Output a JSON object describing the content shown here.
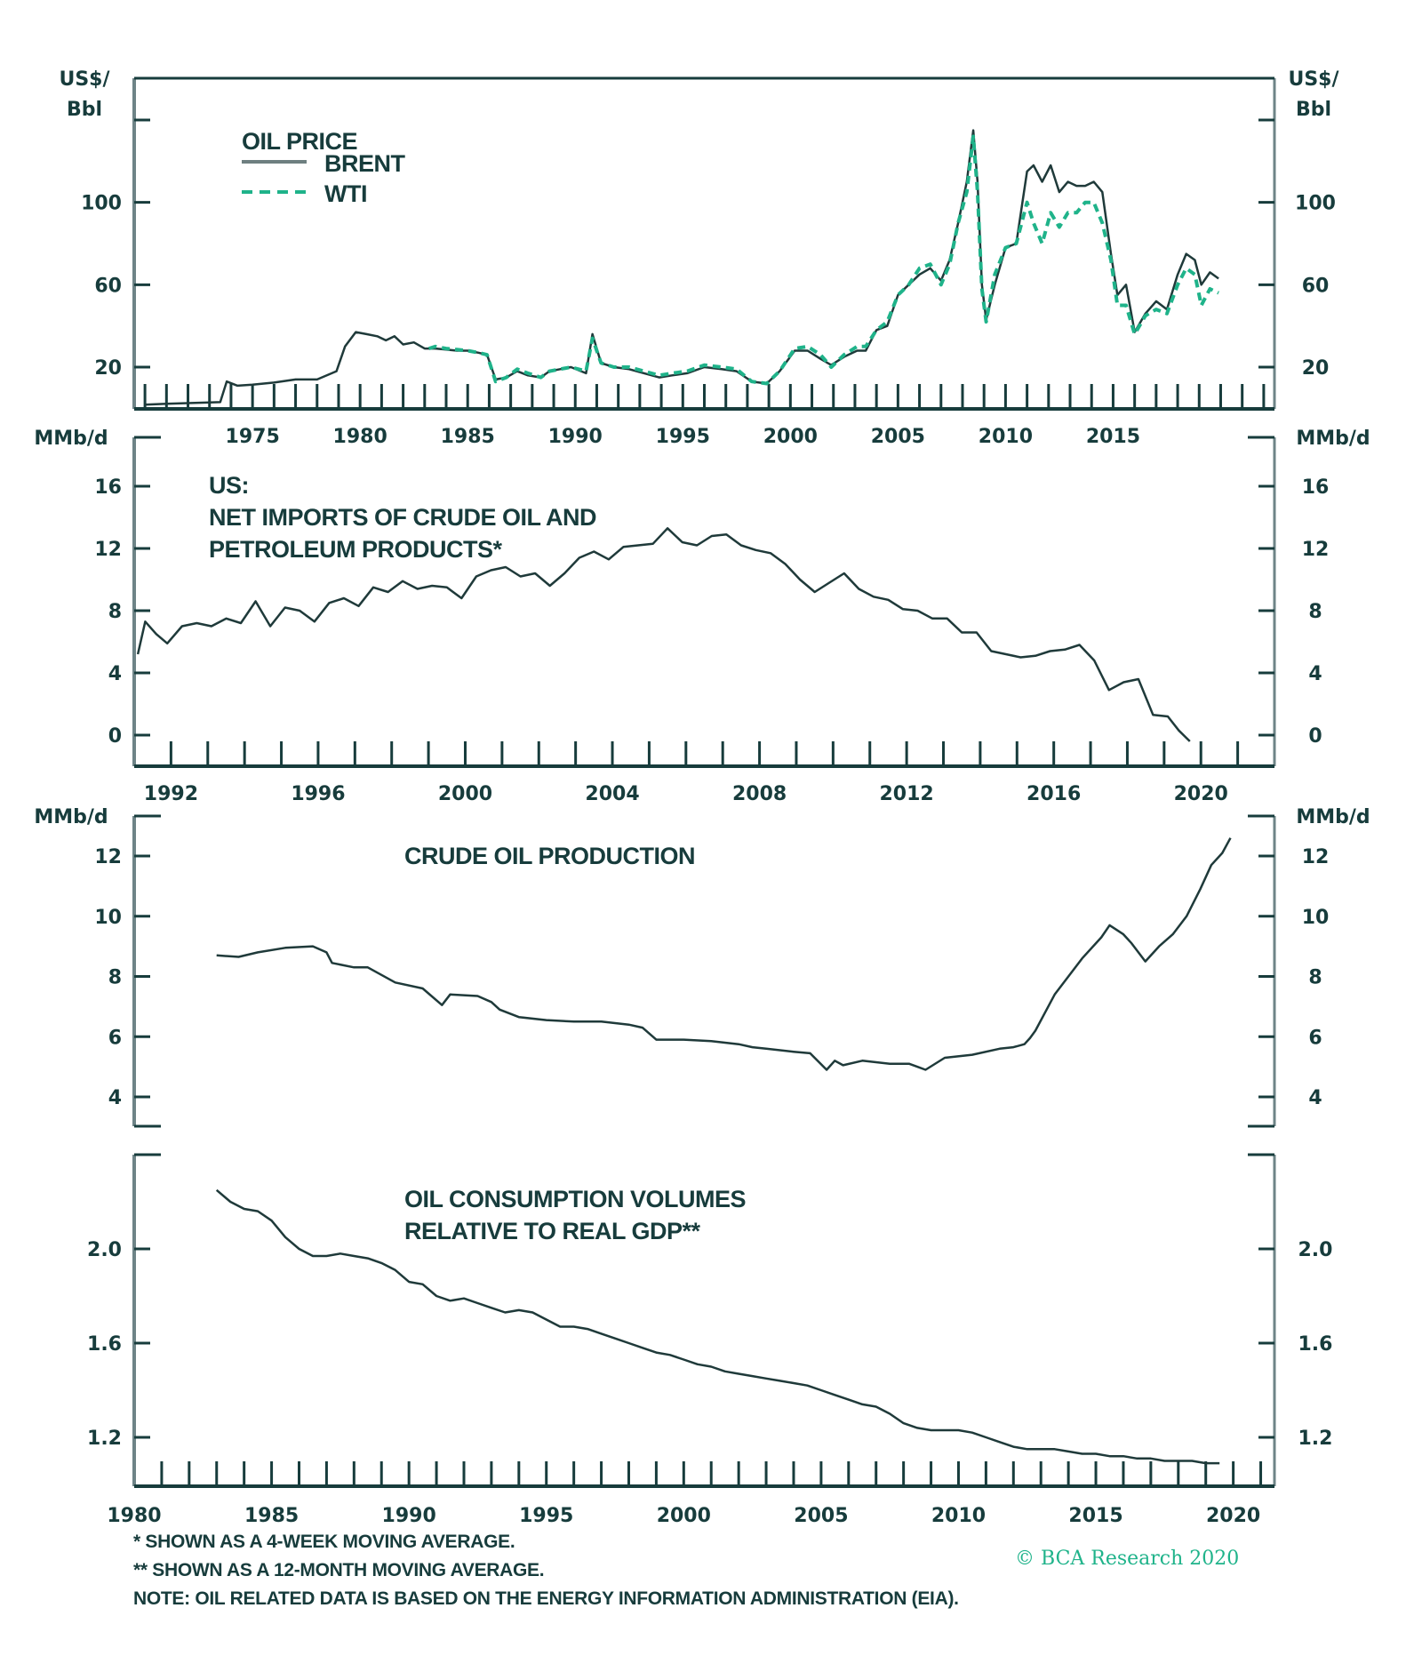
{
  "colors": {
    "ink": "#173c3c",
    "axis": "#6e8487",
    "brent": "#1f3a3a",
    "wti": "#1fb38a",
    "copyright": "#1fb38a"
  },
  "footnotes": [
    "*  SHOWN AS A 4-WEEK MOVING AVERAGE.",
    "** SHOWN AS A 12-MONTH MOVING AVERAGE.",
    "NOTE: OIL RELATED DATA IS BASED ON THE ENERGY INFORMATION ADMINISTRATION (EIA)."
  ],
  "copyright": "© BCA Research 2020",
  "chart_data": [
    {
      "id": "oil-price",
      "type": "line",
      "title": "OIL PRICE",
      "ylabel": "US$/ Bbl",
      "ylabel_lines": [
        "US$/",
        "Bbl"
      ],
      "ylim": [
        0,
        140
      ],
      "yticks": [
        20,
        60,
        100,
        140
      ],
      "ytick_labels": [
        "20",
        "60",
        "100",
        ""
      ],
      "xlim": [
        1969.5,
        2022.5
      ],
      "xticks_minor_every": 1,
      "xtick_labels": [
        "1975",
        "1980",
        "1985",
        "1990",
        "1995",
        "2000",
        "2005",
        "2010",
        "2015"
      ],
      "legend": {
        "placement": "top-left",
        "entries": [
          {
            "name": "BRENT",
            "style": "solid"
          },
          {
            "name": "WTI",
            "style": "dashed"
          }
        ]
      },
      "series": [
        {
          "name": "BRENT",
          "style": "solid",
          "x": [
            1970,
            1971,
            1972,
            1973.5,
            1973.8,
            1974.3,
            1975,
            1976,
            1977,
            1978,
            1978.9,
            1979.3,
            1979.8,
            1980.3,
            1980.8,
            1981.2,
            1981.6,
            1982,
            1982.5,
            1983,
            1983.5,
            1984,
            1984.5,
            1985,
            1985.5,
            1985.9,
            1986.3,
            1986.8,
            1987.3,
            1987.8,
            1988.4,
            1988.8,
            1989.3,
            1989.8,
            1990.5,
            1990.8,
            1991.2,
            1991.8,
            1992.5,
            1993.2,
            1993.9,
            1994.5,
            1995.2,
            1996,
            1996.8,
            1997.5,
            1998.2,
            1998.9,
            1999.5,
            2000.2,
            2000.8,
            2001.4,
            2001.9,
            2002.5,
            2003.1,
            2003.5,
            2004,
            2004.5,
            2005,
            2005.5,
            2006,
            2006.5,
            2007,
            2007.4,
            2007.8,
            2008.2,
            2008.5,
            2008.7,
            2008.9,
            2009.1,
            2009.5,
            2010,
            2010.5,
            2011,
            2011.3,
            2011.7,
            2012.1,
            2012.5,
            2012.9,
            2013.3,
            2013.7,
            2014.1,
            2014.5,
            2014.9,
            2015.2,
            2015.6,
            2016.0,
            2016.5,
            2017,
            2017.5,
            2018,
            2018.4,
            2018.8,
            2019.1,
            2019.5,
            2019.9
          ],
          "y": [
            1.8,
            2.2,
            2.5,
            3,
            13,
            11,
            11.5,
            12.5,
            14,
            14,
            18,
            30,
            37,
            36,
            35,
            33,
            35,
            31,
            32,
            29,
            29,
            28.5,
            28,
            28,
            27,
            26,
            14,
            15,
            18,
            16,
            15,
            18,
            19,
            20,
            17,
            36,
            22,
            20,
            19,
            17,
            15,
            16,
            17,
            20,
            19,
            18,
            13,
            12,
            18,
            28,
            28,
            24,
            21,
            25,
            28,
            28,
            38,
            40,
            55,
            60,
            65,
            68,
            62,
            72,
            90,
            110,
            135,
            110,
            60,
            43,
            60,
            78,
            80,
            115,
            118,
            110,
            118,
            105,
            110,
            108,
            108,
            110,
            105,
            75,
            55,
            60,
            37,
            46,
            52,
            48,
            65,
            75,
            72,
            60,
            66,
            63
          ]
        },
        {
          "name": "WTI",
          "style": "dashed",
          "x": [
            1983.2,
            1983.5,
            1984,
            1984.5,
            1985,
            1985.5,
            1985.9,
            1986.3,
            1986.8,
            1987.3,
            1987.8,
            1988.4,
            1988.8,
            1989.3,
            1989.8,
            1990.5,
            1990.8,
            1991.2,
            1991.8,
            1992.5,
            1993.2,
            1993.9,
            1994.5,
            1995.2,
            1996,
            1996.8,
            1997.5,
            1998.2,
            1998.9,
            1999.5,
            2000.2,
            2000.8,
            2001.4,
            2001.9,
            2002.5,
            2003.1,
            2003.5,
            2004,
            2004.5,
            2005,
            2005.5,
            2006,
            2006.5,
            2007,
            2007.4,
            2007.8,
            2008.2,
            2008.5,
            2008.7,
            2008.9,
            2009.1,
            2009.5,
            2010,
            2010.5,
            2011,
            2011.3,
            2011.7,
            2012.1,
            2012.5,
            2012.9,
            2013.3,
            2013.7,
            2014.1,
            2014.5,
            2014.9,
            2015.2,
            2015.6,
            2016.0,
            2016.5,
            2017,
            2017.5,
            2018,
            2018.4,
            2018.8,
            2019.1,
            2019.5,
            2019.9
          ],
          "y": [
            29,
            30,
            29,
            28.5,
            28,
            27,
            26,
            13,
            15,
            19,
            17,
            15,
            18,
            19,
            20,
            18,
            34,
            22,
            20,
            20,
            18,
            16,
            17,
            18,
            21,
            20,
            19,
            13,
            12,
            18,
            29,
            30,
            26,
            20,
            26,
            30,
            30,
            38,
            42,
            55,
            60,
            68,
            70,
            60,
            70,
            90,
            105,
            132,
            105,
            58,
            42,
            65,
            78,
            80,
            100,
            90,
            80,
            95,
            88,
            95,
            95,
            100,
            100,
            90,
            72,
            50,
            50,
            36,
            45,
            48,
            46,
            60,
            68,
            65,
            50,
            58,
            56
          ]
        }
      ]
    },
    {
      "id": "net-imports",
      "type": "line",
      "title_lines": [
        "US:",
        "NET IMPORTS OF CRUDE OIL AND",
        "PETROLEUM PRODUCTS*"
      ],
      "ylabel": "MMb/d",
      "ylim": [
        -1.8,
        18.5
      ],
      "yticks": [
        0,
        4,
        8,
        12,
        16
      ],
      "ytick_labels": [
        "0",
        "4",
        "8",
        "12",
        "16"
      ],
      "xlim": [
        1991,
        2022
      ],
      "xticks_minor_every": 1,
      "xtick_labels": [
        "1992",
        "1996",
        "2000",
        "2004",
        "2008",
        "2012",
        "2016",
        "2020"
      ],
      "series": [
        {
          "name": "Net imports",
          "x": [
            1991.1,
            1991.3,
            1991.6,
            1991.9,
            1992.3,
            1992.7,
            1993.1,
            1993.5,
            1993.9,
            1994.3,
            1994.7,
            1995.1,
            1995.5,
            1995.9,
            1996.3,
            1996.7,
            1997.1,
            1997.5,
            1997.9,
            1998.3,
            1998.7,
            1999.1,
            1999.5,
            1999.9,
            2000.3,
            2000.7,
            2001.1,
            2001.5,
            2001.9,
            2002.3,
            2002.7,
            2003.1,
            2003.5,
            2003.9,
            2004.3,
            2004.7,
            2005.1,
            2005.5,
            2005.9,
            2006.3,
            2006.7,
            2007.1,
            2007.5,
            2007.9,
            2008.3,
            2008.7,
            2009.1,
            2009.5,
            2009.9,
            2010.3,
            2010.7,
            2011.1,
            2011.5,
            2011.9,
            2012.3,
            2012.7,
            2013.1,
            2013.5,
            2013.9,
            2014.3,
            2014.7,
            2015.1,
            2015.5,
            2015.9,
            2016.3,
            2016.7,
            2017.1,
            2017.5,
            2017.9,
            2018.3,
            2018.7,
            2019.1,
            2019.4,
            2019.7
          ],
          "y": [
            5.2,
            7.3,
            6.5,
            5.9,
            7.0,
            7.2,
            7.0,
            7.5,
            7.2,
            8.6,
            7.0,
            8.2,
            8.0,
            7.3,
            8.5,
            8.8,
            8.3,
            9.5,
            9.2,
            9.9,
            9.4,
            9.6,
            9.5,
            8.8,
            10.2,
            10.6,
            10.8,
            10.2,
            10.4,
            9.6,
            10.4,
            11.4,
            11.8,
            11.3,
            12.1,
            12.2,
            12.3,
            13.3,
            12.4,
            12.2,
            12.8,
            12.9,
            12.2,
            11.9,
            11.7,
            11.0,
            10.0,
            9.2,
            9.8,
            10.4,
            9.4,
            8.9,
            8.7,
            8.1,
            8.0,
            7.5,
            7.5,
            6.6,
            6.6,
            5.4,
            5.2,
            5.0,
            5.1,
            5.4,
            5.5,
            5.8,
            4.8,
            2.9,
            3.4,
            3.6,
            1.3,
            1.2,
            0.3,
            -0.4
          ]
        }
      ]
    },
    {
      "id": "crude-production",
      "type": "line",
      "title": "CRUDE OIL PRODUCTION",
      "ylabel": "MMb/d",
      "ylim": [
        3,
        13.7
      ],
      "yticks": [
        4,
        6,
        8,
        10,
        12
      ],
      "ytick_labels": [
        "4",
        "6",
        "8",
        "10",
        "12"
      ],
      "xlim": [
        1980,
        2021.5
      ],
      "series": [
        {
          "name": "Crude oil production",
          "x": [
            1983,
            1983.8,
            1984.5,
            1985.5,
            1986.5,
            1987.0,
            1987.2,
            1988,
            1988.5,
            1989.5,
            1990.5,
            1991.2,
            1991.5,
            1992.5,
            1993,
            1993.3,
            1994,
            1995,
            1996,
            1997,
            1998,
            1998.5,
            1999,
            2000,
            2001,
            2002,
            2002.5,
            2003,
            2004,
            2004.6,
            2005.2,
            2005.5,
            2005.8,
            2006.5,
            2007.5,
            2008.2,
            2008.5,
            2008.8,
            2009.5,
            2010.5,
            2011.5,
            2012,
            2012.4,
            2012.6,
            2012.8,
            2013.5,
            2014.5,
            2015.2,
            2015.5,
            2016,
            2016.3,
            2016.8,
            2017.3,
            2017.8,
            2018.3,
            2018.8,
            2019.2,
            2019.6,
            2019.9
          ],
          "y": [
            8.7,
            8.65,
            8.8,
            8.95,
            9.0,
            8.8,
            8.45,
            8.3,
            8.3,
            7.8,
            7.6,
            7.05,
            7.4,
            7.35,
            7.15,
            6.9,
            6.65,
            6.55,
            6.5,
            6.5,
            6.4,
            6.3,
            5.9,
            5.9,
            5.85,
            5.75,
            5.65,
            5.6,
            5.5,
            5.45,
            4.9,
            5.2,
            5.05,
            5.2,
            5.1,
            5.1,
            5.0,
            4.9,
            5.3,
            5.4,
            5.6,
            5.65,
            5.75,
            5.95,
            6.2,
            7.4,
            8.6,
            9.3,
            9.7,
            9.4,
            9.1,
            8.5,
            9.0,
            9.4,
            10.0,
            10.9,
            11.7,
            12.1,
            12.6
          ]
        }
      ]
    },
    {
      "id": "consumption-gdp",
      "type": "line",
      "title_lines": [
        "OIL CONSUMPTION VOLUMES",
        "RELATIVE TO REAL GDP**"
      ],
      "ylabel": "",
      "ylim": [
        0.995,
        2.4
      ],
      "yticks": [
        1.2,
        1.6,
        2.0,
        2.4
      ],
      "ytick_labels": [
        "1.2",
        "1.6",
        "2.0",
        ""
      ],
      "xlim": [
        1980,
        2021.5
      ],
      "xticks_minor_every": 1,
      "xtick_labels": [
        "1980",
        "1985",
        "1990",
        "1995",
        "2000",
        "2005",
        "2010",
        "2015",
        "2020"
      ],
      "series": [
        {
          "name": "Consumption / real GDP",
          "x": [
            1983,
            1983.5,
            1984,
            1984.5,
            1985,
            1985.5,
            1986,
            1986.5,
            1987,
            1987.5,
            1988,
            1988.5,
            1989,
            1989.5,
            1990,
            1990.5,
            1991,
            1991.5,
            1992,
            1992.5,
            1993,
            1993.5,
            1994,
            1994.5,
            1995,
            1995.5,
            1996,
            1996.5,
            1997,
            1997.5,
            1998,
            1998.5,
            1999,
            1999.5,
            2000,
            2000.5,
            2001,
            2001.5,
            2002,
            2002.5,
            2003,
            2003.5,
            2004,
            2004.5,
            2005,
            2005.5,
            2006,
            2006.5,
            2007,
            2007.5,
            2008,
            2008.5,
            2009,
            2009.5,
            2010,
            2010.5,
            2011,
            2011.5,
            2012,
            2012.5,
            2013,
            2013.5,
            2014,
            2014.5,
            2015,
            2015.5,
            2016,
            2016.5,
            2017,
            2017.5,
            2018,
            2018.5,
            2019,
            2019.5
          ],
          "y": [
            2.25,
            2.2,
            2.17,
            2.16,
            2.12,
            2.05,
            2.0,
            1.97,
            1.97,
            1.98,
            1.97,
            1.96,
            1.94,
            1.91,
            1.86,
            1.85,
            1.8,
            1.78,
            1.79,
            1.77,
            1.75,
            1.73,
            1.74,
            1.73,
            1.7,
            1.67,
            1.67,
            1.66,
            1.64,
            1.62,
            1.6,
            1.58,
            1.56,
            1.55,
            1.53,
            1.51,
            1.5,
            1.48,
            1.47,
            1.46,
            1.45,
            1.44,
            1.43,
            1.42,
            1.4,
            1.38,
            1.36,
            1.34,
            1.33,
            1.3,
            1.26,
            1.24,
            1.23,
            1.23,
            1.23,
            1.22,
            1.2,
            1.18,
            1.16,
            1.15,
            1.15,
            1.15,
            1.14,
            1.13,
            1.13,
            1.12,
            1.12,
            1.11,
            1.11,
            1.1,
            1.1,
            1.1,
            1.09,
            1.09
          ]
        }
      ]
    }
  ]
}
